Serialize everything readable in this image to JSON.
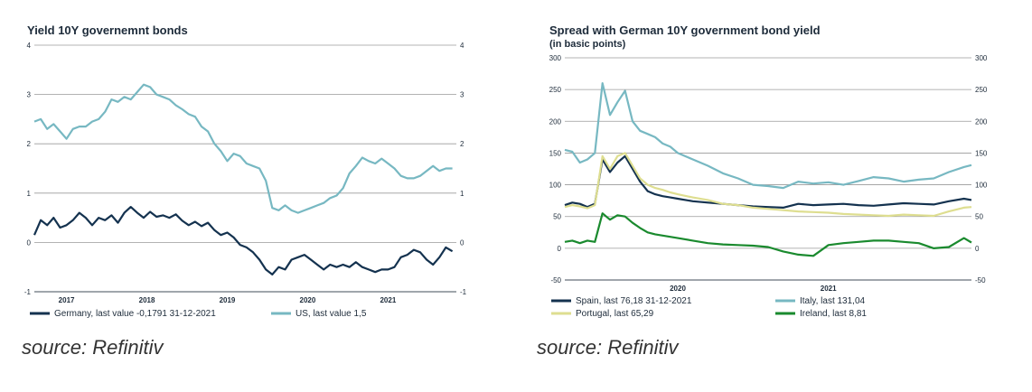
{
  "charts": [
    {
      "type": "line",
      "title": "Yield 10Y governemnt bonds",
      "subtitle": "",
      "source": "source: Refinitiv",
      "ylim": [
        -1,
        4
      ],
      "yticks": [
        "-1",
        "0",
        "1",
        "2",
        "3",
        "4"
      ],
      "xticks": [
        "2017",
        "2018",
        "2019",
        "2020",
        "2021"
      ],
      "xlim": [
        2016.6,
        2021.85
      ],
      "grid": true,
      "legend_position": "bottom",
      "series": [
        {
          "name": "Germany, last value -0,1791 31-12-2021",
          "color": "#14324f",
          "x": [
            2016.6,
            2016.68,
            2016.76,
            2016.84,
            2016.92,
            2017.0,
            2017.08,
            2017.16,
            2017.24,
            2017.32,
            2017.4,
            2017.48,
            2017.56,
            2017.64,
            2017.72,
            2017.8,
            2017.88,
            2017.96,
            2018.04,
            2018.12,
            2018.2,
            2018.28,
            2018.36,
            2018.44,
            2018.52,
            2018.6,
            2018.68,
            2018.76,
            2018.84,
            2018.92,
            2019.0,
            2019.08,
            2019.16,
            2019.24,
            2019.32,
            2019.4,
            2019.48,
            2019.56,
            2019.64,
            2019.72,
            2019.8,
            2019.88,
            2019.96,
            2020.04,
            2020.12,
            2020.2,
            2020.28,
            2020.36,
            2020.44,
            2020.52,
            2020.6,
            2020.68,
            2020.76,
            2020.84,
            2020.92,
            2021.0,
            2021.08,
            2021.16,
            2021.24,
            2021.32,
            2021.4,
            2021.48,
            2021.56,
            2021.64,
            2021.72,
            2021.8
          ],
          "values": [
            0.15,
            0.45,
            0.35,
            0.5,
            0.3,
            0.35,
            0.45,
            0.6,
            0.5,
            0.35,
            0.5,
            0.45,
            0.55,
            0.4,
            0.6,
            0.72,
            0.6,
            0.5,
            0.62,
            0.52,
            0.55,
            0.5,
            0.57,
            0.44,
            0.35,
            0.42,
            0.33,
            0.4,
            0.25,
            0.15,
            0.2,
            0.1,
            -0.05,
            -0.1,
            -0.2,
            -0.35,
            -0.55,
            -0.65,
            -0.5,
            -0.55,
            -0.35,
            -0.3,
            -0.25,
            -0.35,
            -0.45,
            -0.55,
            -0.45,
            -0.5,
            -0.45,
            -0.5,
            -0.4,
            -0.5,
            -0.55,
            -0.6,
            -0.55,
            -0.55,
            -0.5,
            -0.3,
            -0.25,
            -0.15,
            -0.2,
            -0.35,
            -0.45,
            -0.3,
            -0.1,
            -0.18
          ]
        },
        {
          "name": "US, last value 1,5",
          "color": "#77b8c2",
          "x": [
            2016.6,
            2016.68,
            2016.76,
            2016.84,
            2016.92,
            2017.0,
            2017.08,
            2017.16,
            2017.24,
            2017.32,
            2017.4,
            2017.48,
            2017.56,
            2017.64,
            2017.72,
            2017.8,
            2017.88,
            2017.96,
            2018.04,
            2018.12,
            2018.2,
            2018.28,
            2018.36,
            2018.44,
            2018.52,
            2018.6,
            2018.68,
            2018.76,
            2018.84,
            2018.92,
            2019.0,
            2019.08,
            2019.16,
            2019.24,
            2019.32,
            2019.4,
            2019.48,
            2019.56,
            2019.64,
            2019.72,
            2019.8,
            2019.88,
            2019.96,
            2020.04,
            2020.12,
            2020.2,
            2020.28,
            2020.36,
            2020.44,
            2020.52,
            2020.6,
            2020.68,
            2020.76,
            2020.84,
            2020.92,
            2021.0,
            2021.08,
            2021.16,
            2021.24,
            2021.32,
            2021.4,
            2021.48,
            2021.56,
            2021.64,
            2021.72,
            2021.8
          ],
          "values": [
            2.45,
            2.5,
            2.3,
            2.4,
            2.25,
            2.1,
            2.3,
            2.35,
            2.35,
            2.45,
            2.5,
            2.65,
            2.9,
            2.85,
            2.95,
            2.9,
            3.05,
            3.2,
            3.15,
            3.0,
            2.95,
            2.9,
            2.78,
            2.7,
            2.6,
            2.55,
            2.35,
            2.25,
            2.0,
            1.85,
            1.65,
            1.8,
            1.75,
            1.6,
            1.55,
            1.5,
            1.25,
            0.7,
            0.65,
            0.75,
            0.65,
            0.6,
            0.65,
            0.7,
            0.75,
            0.8,
            0.9,
            0.95,
            1.1,
            1.4,
            1.55,
            1.72,
            1.65,
            1.6,
            1.7,
            1.6,
            1.5,
            1.35,
            1.3,
            1.3,
            1.35,
            1.45,
            1.55,
            1.45,
            1.5,
            1.5
          ]
        }
      ]
    },
    {
      "type": "line",
      "title": "Spread with German 10Y government bond yield",
      "subtitle": "(in basic points)",
      "source": "source: Refinitiv",
      "ylim": [
        -50,
        300
      ],
      "yticks": [
        "-50",
        "0",
        "50",
        "100",
        "150",
        "200",
        "250",
        "300"
      ],
      "xticks": [
        "2020",
        "2021"
      ],
      "xlim": [
        2019.25,
        2021.95
      ],
      "grid": true,
      "legend_position": "bottom",
      "series": [
        {
          "name": "Spain, last 76,18 31-12-2021",
          "color": "#14324f",
          "x": [
            2019.25,
            2019.3,
            2019.35,
            2019.4,
            2019.45,
            2019.5,
            2019.55,
            2019.6,
            2019.65,
            2019.7,
            2019.75,
            2019.8,
            2019.85,
            2019.9,
            2019.95,
            2020.0,
            2020.1,
            2020.2,
            2020.3,
            2020.4,
            2020.5,
            2020.6,
            2020.7,
            2020.8,
            2020.9,
            2021.0,
            2021.1,
            2021.2,
            2021.3,
            2021.4,
            2021.5,
            2021.6,
            2021.7,
            2021.8,
            2021.9,
            2021.95
          ],
          "values": [
            68,
            72,
            70,
            65,
            70,
            140,
            120,
            135,
            145,
            125,
            105,
            90,
            85,
            82,
            80,
            78,
            74,
            72,
            70,
            68,
            66,
            65,
            64,
            70,
            68,
            69,
            70,
            68,
            67,
            69,
            71,
            70,
            69,
            74,
            78,
            76
          ]
        },
        {
          "name": "Italy, last 131,04",
          "color": "#77b8c2",
          "x": [
            2019.25,
            2019.3,
            2019.35,
            2019.4,
            2019.45,
            2019.5,
            2019.55,
            2019.6,
            2019.65,
            2019.7,
            2019.75,
            2019.8,
            2019.85,
            2019.9,
            2019.95,
            2020.0,
            2020.1,
            2020.2,
            2020.3,
            2020.4,
            2020.5,
            2020.6,
            2020.7,
            2020.8,
            2020.9,
            2021.0,
            2021.1,
            2021.2,
            2021.3,
            2021.4,
            2021.5,
            2021.6,
            2021.7,
            2021.8,
            2021.9,
            2021.95
          ],
          "values": [
            155,
            152,
            135,
            140,
            150,
            260,
            210,
            230,
            248,
            200,
            185,
            180,
            175,
            165,
            160,
            150,
            140,
            130,
            118,
            110,
            100,
            98,
            95,
            105,
            102,
            104,
            100,
            106,
            112,
            110,
            105,
            108,
            110,
            120,
            128,
            131
          ]
        },
        {
          "name": "Portugal, last 65,29",
          "color": "#dede90",
          "x": [
            2019.25,
            2019.3,
            2019.35,
            2019.4,
            2019.45,
            2019.5,
            2019.55,
            2019.6,
            2019.65,
            2019.7,
            2019.75,
            2019.8,
            2019.85,
            2019.9,
            2019.95,
            2020.0,
            2020.1,
            2020.2,
            2020.3,
            2020.4,
            2020.5,
            2020.6,
            2020.7,
            2020.8,
            2020.9,
            2021.0,
            2021.1,
            2021.2,
            2021.3,
            2021.4,
            2021.5,
            2021.6,
            2021.7,
            2021.8,
            2021.9,
            2021.95
          ],
          "values": [
            65,
            68,
            66,
            63,
            68,
            145,
            125,
            145,
            150,
            130,
            110,
            100,
            95,
            92,
            88,
            85,
            80,
            76,
            70,
            68,
            64,
            62,
            60,
            58,
            57,
            56,
            54,
            53,
            52,
            51,
            53,
            52,
            51,
            58,
            64,
            65
          ]
        },
        {
          "name": "Ireland, last 8,81",
          "color": "#1a8a2e",
          "x": [
            2019.25,
            2019.3,
            2019.35,
            2019.4,
            2019.45,
            2019.5,
            2019.55,
            2019.6,
            2019.65,
            2019.7,
            2019.75,
            2019.8,
            2019.85,
            2019.9,
            2019.95,
            2020.0,
            2020.1,
            2020.2,
            2020.3,
            2020.4,
            2020.5,
            2020.6,
            2020.7,
            2020.8,
            2020.9,
            2021.0,
            2021.1,
            2021.2,
            2021.3,
            2021.4,
            2021.5,
            2021.6,
            2021.7,
            2021.8,
            2021.9,
            2021.95
          ],
          "values": [
            10,
            12,
            8,
            12,
            10,
            55,
            45,
            52,
            50,
            40,
            32,
            25,
            22,
            20,
            18,
            16,
            12,
            8,
            6,
            5,
            4,
            2,
            -5,
            -10,
            -12,
            5,
            8,
            10,
            12,
            12,
            10,
            8,
            0,
            2,
            16,
            9
          ]
        }
      ]
    }
  ]
}
